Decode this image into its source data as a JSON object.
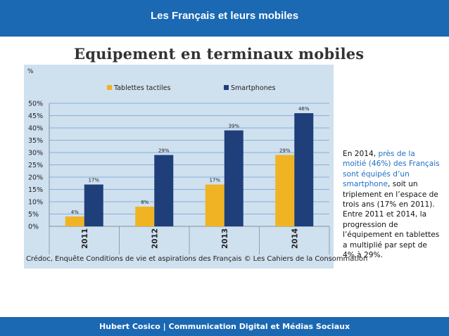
{
  "header": {
    "title": "Les Français et leurs mobiles"
  },
  "chart_data": {
    "type": "bar",
    "title": "Equipement en terminaux mobiles",
    "ylabel": "%",
    "ylim": [
      0,
      50
    ],
    "yticks": [
      "0%",
      "5%",
      "10%",
      "15%",
      "20%",
      "25%",
      "30%",
      "35%",
      "40%",
      "45%",
      "50%"
    ],
    "categories": [
      "2011",
      "2012",
      "2013",
      "2014"
    ],
    "series": [
      {
        "name": "Tablettes tactiles",
        "color": "#f0b323",
        "values": [
          4,
          8,
          17,
          29
        ],
        "labels": [
          "4%",
          "8%",
          "17%",
          "29%"
        ]
      },
      {
        "name": "Smartphones",
        "color": "#1f3f7a",
        "values": [
          17,
          29,
          39,
          46
        ],
        "labels": [
          "17%",
          "29%",
          "39%",
          "46%"
        ]
      }
    ],
    "legend": "top",
    "grid": true,
    "source": "Crédoc, Enquête Conditions de vie et aspirations des Français  © Les Cahiers de la Consommation"
  },
  "side_text": {
    "p1": "En 2014, ",
    "h1": "près de la moitié (46%) des Français sont équipés d’un smartphone",
    "p2": ", soit un triplement en l’espace de trois ans (17% en 2011). Entre 2011 et 2014, la progression de l’équipement en tablettes a multiplié par sept de 4% à 29%."
  },
  "footer": {
    "text": "Hubert Cosico | Communication Digital et Médias Sociaux"
  }
}
